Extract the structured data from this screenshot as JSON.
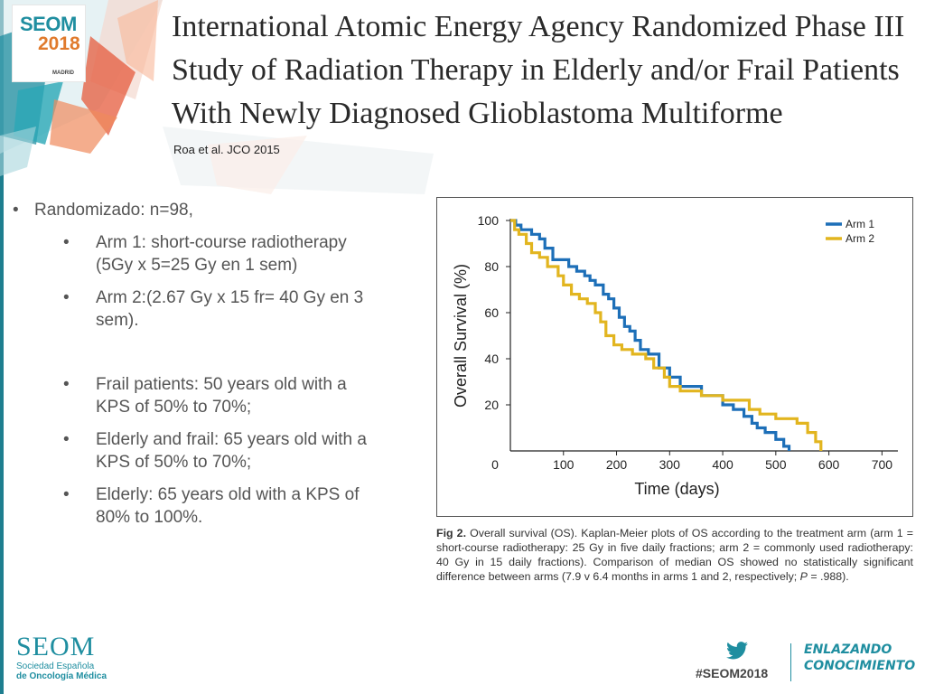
{
  "header": {
    "logo": {
      "name": "SEOM",
      "year": "2018",
      "city": "MADRID"
    },
    "title_lines": [
      "International Atomic Energy Agency Randomized Phase III",
      "Study of Radiation Therapy in Elderly and/or Frail Patients",
      "With Newly Diagnosed Glioblastoma Multiforme"
    ],
    "citation": "Roa et al. JCO 2015"
  },
  "bullets": {
    "main": "Randomizado: n=98,",
    "items": [
      {
        "lines": [
          "Arm 1: short-course radiotherapy",
          "(5Gy x 5=25 Gy en 1 sem)"
        ]
      },
      {
        "lines": [
          "Arm 2:(2.67 Gy x 15 fr= 40 Gy en 3",
          "sem)."
        ]
      },
      {
        "lines": [
          "Frail patients: 50 years old with a",
          "KPS of 50% to 70%;"
        ]
      },
      {
        "lines": [
          "Elderly and frail: 65 years old with a",
          "KPS of 50% to 70%;"
        ]
      },
      {
        "lines": [
          "Elderly: 65 years old with a KPS of",
          "80% to 100%."
        ]
      }
    ]
  },
  "figure": {
    "caption": {
      "label": "Fig 2.",
      "text": "Overall survival (OS). Kaplan-Meier plots of OS according to the treatment arm (arm 1 = short-course radiotherapy: 25 Gy in five daily fractions; arm 2 = commonly used radiotherapy: 40 Gy in 15 daily fractions). Comparison of median OS showed no statistically significant difference between arms (7.9 v 6.4 months in arms 1 and 2, respectively; ",
      "p_label": "P",
      "p_value": " = .988)."
    }
  },
  "chart_data": {
    "type": "line",
    "step": true,
    "xlabel": "Time (days)",
    "ylabel": "Overall Survival (%)",
    "xlim": [
      0,
      730
    ],
    "ylim": [
      0,
      100
    ],
    "x_ticks": [
      0,
      100,
      200,
      300,
      400,
      500,
      600,
      700
    ],
    "y_ticks": [
      100,
      80,
      60,
      40,
      20
    ],
    "legend_position": "top-right",
    "grid": false,
    "series": [
      {
        "name": "Arm 1",
        "color": "#1d6fb8",
        "x": [
          0,
          10,
          20,
          40,
          55,
          65,
          80,
          110,
          125,
          140,
          150,
          160,
          175,
          185,
          195,
          205,
          215,
          225,
          235,
          245,
          260,
          280,
          300,
          320,
          360,
          400,
          420,
          440,
          455,
          465,
          480,
          500,
          515,
          525
        ],
        "y": [
          100,
          98,
          96,
          94,
          92,
          88,
          83,
          80,
          78,
          76,
          74,
          72,
          68,
          66,
          62,
          58,
          54,
          52,
          48,
          44,
          42,
          36,
          32,
          28,
          24,
          20,
          18,
          15,
          12,
          10,
          8,
          5,
          2,
          0
        ]
      },
      {
        "name": "Arm 2",
        "color": "#e2b51f",
        "x": [
          0,
          8,
          16,
          30,
          40,
          55,
          70,
          90,
          100,
          115,
          130,
          145,
          160,
          170,
          180,
          195,
          210,
          230,
          255,
          270,
          290,
          300,
          320,
          360,
          400,
          450,
          470,
          500,
          540,
          560,
          575,
          585
        ],
        "y": [
          100,
          96,
          94,
          90,
          86,
          84,
          80,
          76,
          72,
          68,
          66,
          64,
          60,
          56,
          50,
          46,
          44,
          42,
          40,
          36,
          32,
          28,
          26,
          24,
          22,
          18,
          16,
          14,
          12,
          8,
          4,
          0
        ]
      }
    ]
  },
  "footer": {
    "seom": "SEOM",
    "society_line1": "Sociedad Española",
    "society_line2": "de Oncología Médica",
    "hashtag": "#SEOM2018",
    "slogan_line1": "ENLAZANDO",
    "slogan_line2": "CONOCIMIENTO"
  }
}
